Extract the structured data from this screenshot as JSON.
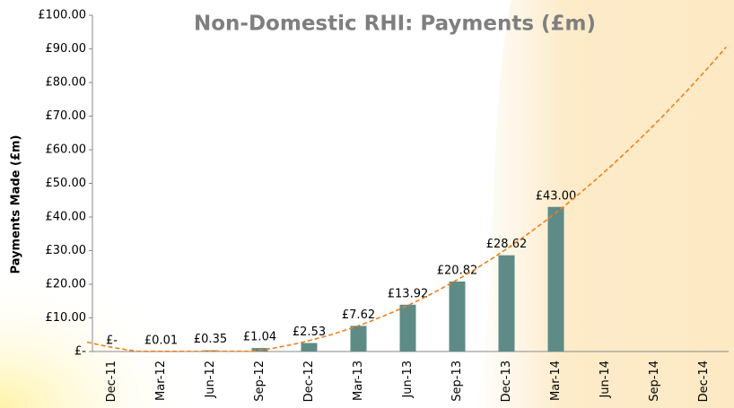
{
  "chart_data": {
    "type": "bar",
    "title": "Non-Domestic RHI: Payments (£m)",
    "y_label": "Payments Made (£m)",
    "categories": [
      "Dec-11",
      "Mar-12",
      "Jun-12",
      "Sep-12",
      "Dec-12",
      "Mar-13",
      "Jun-13",
      "Sep-13",
      "Dec-13",
      "Mar-14",
      "Jun-14",
      "Sep-14",
      "Dec-14"
    ],
    "values": [
      0,
      0.01,
      0.35,
      1.04,
      2.53,
      7.62,
      13.92,
      20.82,
      28.62,
      43.0,
      null,
      null,
      null
    ],
    "value_labels": [
      "£-",
      "£0.01",
      "£0.35",
      "£1.04",
      "£2.53",
      "£7.62",
      "£13.92",
      "£20.82",
      "£28.62",
      "£43.00",
      null,
      null,
      null
    ],
    "color": "#5e8b86",
    "ylim": [
      0,
      100
    ],
    "yticks": [
      {
        "value": 0,
        "label": "£-"
      },
      {
        "value": 10,
        "label": "£10.00"
      },
      {
        "value": 20,
        "label": "£20.00"
      },
      {
        "value": 30,
        "label": "£30.00"
      },
      {
        "value": 40,
        "label": "£40.00"
      },
      {
        "value": 50,
        "label": "£50.00"
      },
      {
        "value": 60,
        "label": "£60.00"
      },
      {
        "value": 70,
        "label": "£70.00"
      },
      {
        "value": 80,
        "label": "£80.00"
      },
      {
        "value": 90,
        "label": "£90.00"
      },
      {
        "value": 100,
        "label": "£100.00"
      }
    ],
    "grid": false,
    "trendline": {
      "type": "polynomial",
      "order": 2,
      "color": "#f07f1e",
      "dashed": true
    }
  }
}
